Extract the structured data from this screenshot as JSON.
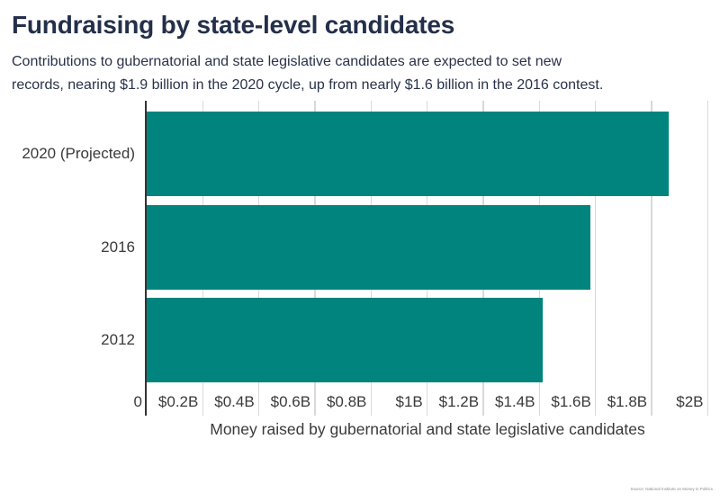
{
  "header": {
    "title": "Fundraising by state-level candidates",
    "subtitle_lines": [
      "Contributions to gubernatorial and state legislative candidates are expected to set new",
      "records, nearing $1.9 billion in the 2020 cycle, up from nearly $1.6 billion in the 2016 contest."
    ]
  },
  "chart_data": {
    "type": "bar",
    "orientation": "horizontal",
    "categories": [
      "2020 (Projected)",
      "2016",
      "2012"
    ],
    "values": [
      1.86,
      1.58,
      1.41
    ],
    "unit": "billions of USD",
    "title": "Fundraising by state-level candidates",
    "xlabel": "Money raised by gubernatorial and state legislative candidates",
    "ylabel": "",
    "xlim": [
      0,
      2
    ],
    "grid": true,
    "legend": "none",
    "bar_color": "#00847D",
    "xticks": [
      {
        "value": 0,
        "label": "0"
      },
      {
        "value": 0.2,
        "label": "$0.2B"
      },
      {
        "value": 0.4,
        "label": "$0.4B"
      },
      {
        "value": 0.6,
        "label": "$0.6B"
      },
      {
        "value": 0.8,
        "label": "$0.8B"
      },
      {
        "value": 1,
        "label": "$1B"
      },
      {
        "value": 1.2,
        "label": "$1.2B"
      },
      {
        "value": 1.4,
        "label": "$1.4B"
      },
      {
        "value": 1.6,
        "label": "$1.6B"
      },
      {
        "value": 1.8,
        "label": "$1.8B"
      },
      {
        "value": 2,
        "label": "$2B"
      }
    ]
  },
  "footer": {
    "source": "Source: National Institute on Money in Politics"
  }
}
